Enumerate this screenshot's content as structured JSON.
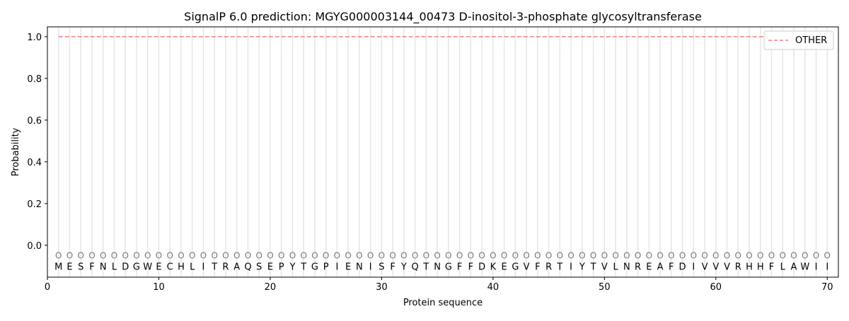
{
  "chart_data": {
    "type": "line",
    "title": "SignalP 6.0 prediction: MGYG000003144_00473 D-inositol-3-phosphate glycosyltransferase",
    "xlabel": "Protein sequence",
    "ylabel": "Probability",
    "xlim": [
      0,
      71
    ],
    "ylim": [
      -0.153,
      1.047
    ],
    "xticks": [
      0,
      10,
      20,
      30,
      40,
      50,
      60,
      70
    ],
    "yticks": [
      0.0,
      0.2,
      0.4,
      0.6,
      0.8,
      1.0
    ],
    "ytick_labels": [
      "0.0",
      "0.2",
      "0.4",
      "0.6",
      "0.8",
      "1.0"
    ],
    "grid": "vertical lines at each residue",
    "legend_position": "top-right",
    "sequence": [
      "M",
      "E",
      "S",
      "F",
      "N",
      "L",
      "D",
      "G",
      "W",
      "E",
      "C",
      "H",
      "L",
      "I",
      "T",
      "R",
      "A",
      "Q",
      "S",
      "E",
      "P",
      "Y",
      "T",
      "G",
      "P",
      "I",
      "E",
      "N",
      "I",
      "S",
      "F",
      "Y",
      "Q",
      "T",
      "N",
      "G",
      "F",
      "F",
      "D",
      "K",
      "E",
      "G",
      "V",
      "F",
      "R",
      "T",
      "I",
      "Y",
      "T",
      "V",
      "L",
      "N",
      "R",
      "E",
      "A",
      "F",
      "D",
      "I",
      "V",
      "V",
      "V",
      "R",
      "H",
      "H",
      "F",
      "L",
      "A",
      "W",
      "I",
      "I"
    ],
    "predicted_label": "O",
    "series": [
      {
        "name": "OTHER",
        "color": "#f08080",
        "style": "dashed",
        "x_range": [
          1,
          70
        ],
        "value": 1.0
      }
    ]
  }
}
